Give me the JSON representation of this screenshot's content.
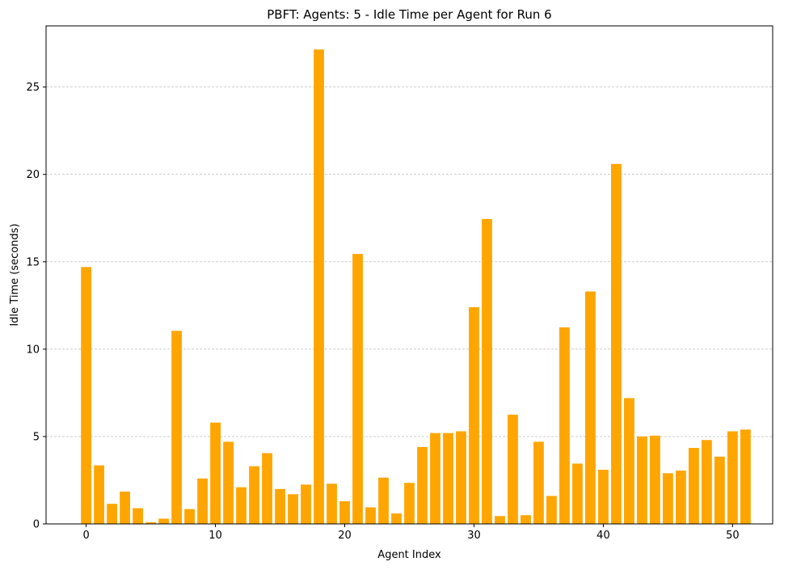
{
  "chart_data": {
    "type": "bar",
    "title": "PBFT: Agents: 5 - Idle Time per Agent for Run 6",
    "xlabel": "Agent Index",
    "ylabel": "Idle Time (seconds)",
    "x_ticks": [
      0,
      10,
      20,
      30,
      40,
      50
    ],
    "y_ticks": [
      0,
      5,
      10,
      15,
      20,
      25
    ],
    "xlim": [
      -3.1,
      53.1
    ],
    "ylim": [
      0,
      28.5
    ],
    "grid": "y-dashed",
    "bar_color": "#ffa500",
    "categories": [
      0,
      1,
      2,
      3,
      4,
      5,
      6,
      7,
      8,
      9,
      10,
      11,
      12,
      13,
      14,
      15,
      16,
      17,
      18,
      19,
      20,
      21,
      22,
      23,
      24,
      25,
      26,
      27,
      28,
      29,
      30,
      31,
      32,
      33,
      34,
      35,
      36,
      37,
      38,
      39,
      40,
      41,
      42,
      43,
      44,
      45,
      46,
      47,
      48,
      49,
      50,
      51
    ],
    "values": [
      14.7,
      3.35,
      1.15,
      1.85,
      0.9,
      0.1,
      0.3,
      11.05,
      0.85,
      2.6,
      5.8,
      4.7,
      2.1,
      3.3,
      4.05,
      2.0,
      1.7,
      2.25,
      27.15,
      2.3,
      1.3,
      15.45,
      0.95,
      2.65,
      0.6,
      2.35,
      4.4,
      5.2,
      5.2,
      5.3,
      12.4,
      17.45,
      0.45,
      6.25,
      0.5,
      4.7,
      1.6,
      11.25,
      3.45,
      13.3,
      3.1,
      20.6,
      7.2,
      5.0,
      5.05,
      2.9,
      3.05,
      4.35,
      4.8,
      3.85,
      5.3,
      5.4
    ]
  }
}
